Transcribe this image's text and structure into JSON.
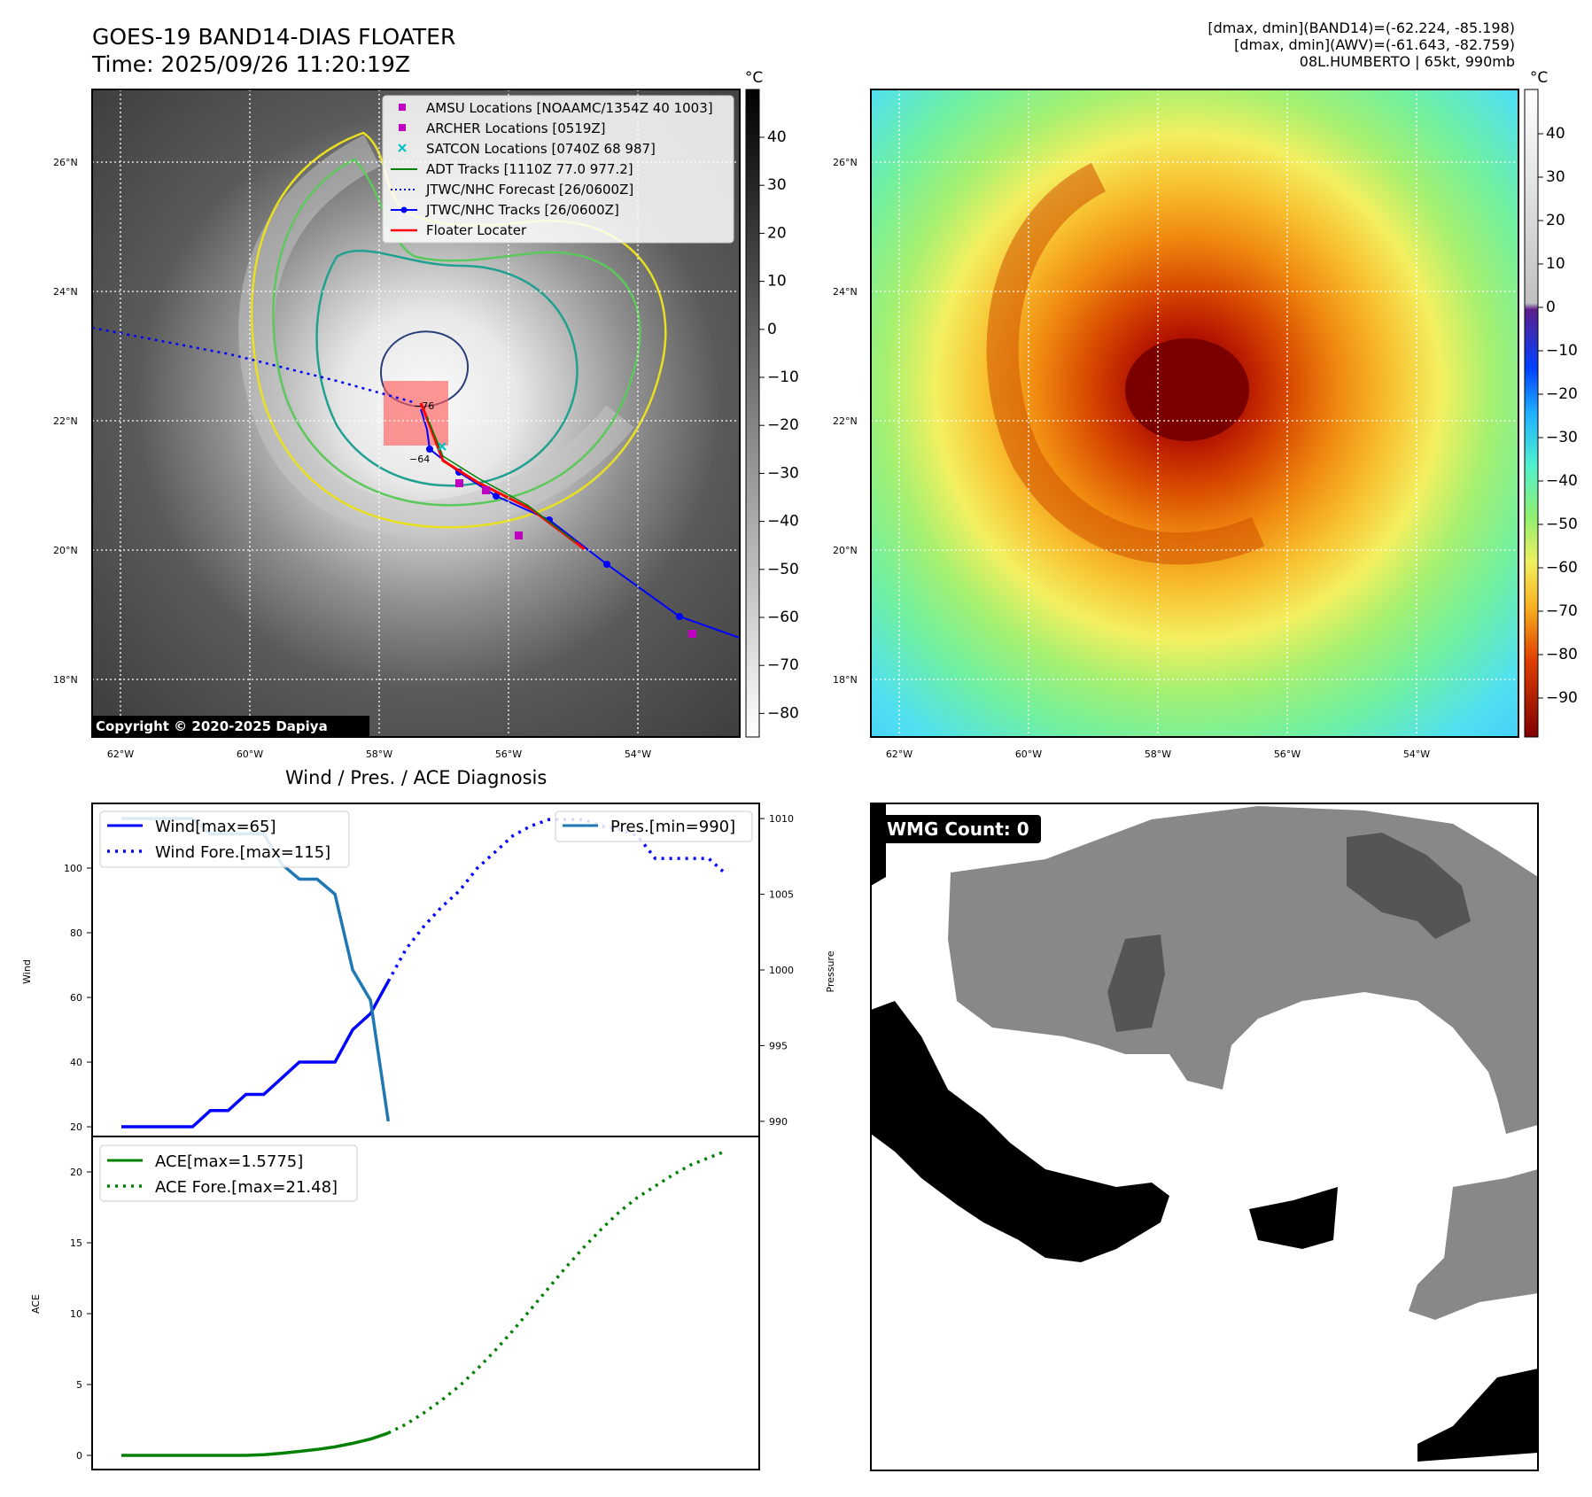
{
  "header": {
    "title_line1": "GOES-19 BAND14-DIAS FLOATER",
    "title_line2": "Time: 2025/09/26 11:20:19Z",
    "right_line1": "[dmax, dmin](BAND14)=(-62.224, -85.198)",
    "right_line2": "[dmax, dmin](AWV)=(-61.643, -82.759)",
    "right_line3": "08L.HUMBERTO | 65kt, 990mb"
  },
  "map_axes": {
    "lat_labels": [
      "26°N",
      "24°N",
      "22°N",
      "20°N",
      "18°N"
    ],
    "lon_labels": [
      "62°W",
      "60°W",
      "58°W",
      "56°W",
      "54°W"
    ],
    "lon_range": [
      -62.44,
      -52.44
    ],
    "lat_range": [
      17.25,
      27.25
    ]
  },
  "panel_ir": {
    "colorbar_unit": "°C",
    "colorbar_ticks": [
      "40",
      "30",
      "20",
      "10",
      "0",
      "−10",
      "−20",
      "−30",
      "−40",
      "−50",
      "−60",
      "−70",
      "−80"
    ],
    "contour_labels": [
      "−76",
      "−64"
    ],
    "copyright": "Copyright © 2020-2025 Dapiya",
    "legend": [
      {
        "label": "AMSU Locations [NOAAMC/1354Z 40 1003]",
        "color": "#c000c0"
      },
      {
        "label": "ARCHER Locations [0519Z]",
        "color": "#c000c0"
      },
      {
        "label": "SATCON Locations [0740Z 68 987]",
        "color": "#00c0c0"
      },
      {
        "label": "ADT Tracks [1110Z 77.0 977.2]",
        "color": "#008000"
      },
      {
        "label": "JTWC/NHC Forecast [26/0600Z]",
        "color": "#0000ff"
      },
      {
        "label": "JTWC/NHC Tracks [26/0600Z]",
        "color": "#0000ff"
      },
      {
        "label": "Floater Locater",
        "color": "#ff0000"
      }
    ]
  },
  "panel_awv": {
    "colorbar_unit": "°C",
    "colorbar_ticks": [
      "40",
      "30",
      "20",
      "10",
      "0",
      "−10",
      "−20",
      "−30",
      "−40",
      "−50",
      "−60",
      "−70",
      "−80",
      "−90"
    ]
  },
  "panel_wmg": {
    "badge": "WMG Count: 0"
  },
  "diagnosis": {
    "title": "Wind / Pres. / ACE Diagnosis",
    "wind_ylabel": "Wind",
    "pres_ylabel": "Pressure",
    "ace_ylabel": "ACE",
    "wind_ticks": [
      "20",
      "40",
      "60",
      "80",
      "100"
    ],
    "pres_ticks": [
      "990",
      "995",
      "1000",
      "1005",
      "1010"
    ],
    "ace_ticks": [
      "0",
      "5",
      "10",
      "15",
      "20"
    ],
    "legend_wind": "Wind[max=65]",
    "legend_wind_fore": "Wind Fore.[max=115]",
    "legend_pres": "Pres.[min=990]",
    "legend_ace": "ACE[max=1.5775]",
    "legend_ace_fore": "ACE Fore.[max=21.48]"
  },
  "chart_data": [
    {
      "type": "line",
      "title": "Wind / Pres. / ACE Diagnosis",
      "xlabel": "",
      "ylabel": "Wind",
      "ylim": [
        17,
        120
      ],
      "series": [
        {
          "name": "Wind[max=65]",
          "color": "#0000ff",
          "style": "solid",
          "x": [
            0,
            1,
            2,
            3,
            4,
            5,
            6,
            7,
            8,
            9,
            10,
            11,
            12,
            13,
            14,
            15
          ],
          "values": [
            20,
            20,
            20,
            20,
            20,
            25,
            25,
            30,
            30,
            35,
            40,
            40,
            40,
            50,
            55,
            65
          ]
        },
        {
          "name": "Wind Fore.[max=115]",
          "color": "#0000ff",
          "style": "dotted",
          "x": [
            15,
            16,
            17,
            18,
            19,
            20,
            21,
            22,
            23,
            24,
            25,
            26,
            27,
            28,
            29,
            30,
            31,
            32,
            33,
            34
          ],
          "values": [
            65,
            75,
            82,
            88,
            93,
            100,
            105,
            110,
            113,
            115,
            115,
            115,
            113,
            112,
            110,
            103,
            103,
            103,
            103,
            98
          ]
        }
      ]
    },
    {
      "type": "line",
      "ylabel": "Pressure",
      "ylim": [
        989,
        1011
      ],
      "series": [
        {
          "name": "Pres.[min=990]",
          "color": "#1f77b4",
          "style": "solid",
          "x": [
            0,
            1,
            2,
            3,
            4,
            5,
            6,
            7,
            8,
            9,
            10,
            11,
            12,
            13,
            14,
            15
          ],
          "values": [
            1010,
            1010,
            1010,
            1010,
            1010,
            1009,
            1009,
            1009,
            1009,
            1007,
            1006,
            1006,
            1005,
            1000,
            998,
            990
          ]
        }
      ]
    },
    {
      "type": "line",
      "ylabel": "ACE",
      "ylim": [
        -1,
        22.5
      ],
      "series": [
        {
          "name": "ACE[max=1.5775]",
          "color": "#008000",
          "style": "solid",
          "x": [
            0,
            1,
            2,
            3,
            4,
            5,
            6,
            7,
            8,
            9,
            10,
            11,
            12,
            13,
            14,
            15
          ],
          "values": [
            0,
            0,
            0,
            0,
            0,
            0,
            0,
            0,
            0.05,
            0.15,
            0.28,
            0.42,
            0.6,
            0.85,
            1.15,
            1.5775
          ]
        },
        {
          "name": "ACE Fore.[max=21.48]",
          "color": "#008000",
          "style": "dotted",
          "x": [
            15,
            16,
            17,
            18,
            19,
            20,
            21,
            22,
            23,
            24,
            25,
            26,
            27,
            28,
            29,
            30,
            31,
            32,
            33,
            34
          ],
          "values": [
            1.58,
            2.2,
            3.0,
            3.9,
            4.9,
            6.1,
            7.4,
            8.8,
            10.3,
            11.8,
            13.3,
            14.7,
            16.0,
            17.2,
            18.2,
            19.0,
            19.8,
            20.5,
            21.0,
            21.48
          ]
        }
      ]
    }
  ]
}
